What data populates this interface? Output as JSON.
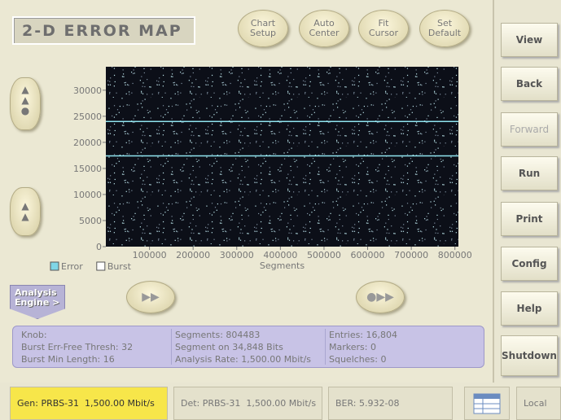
{
  "header": {
    "title": "2-D ERROR MAP"
  },
  "toolbar": [
    "Chart Setup",
    "Auto Center",
    "Fit Cursor",
    "Set Default"
  ],
  "side_buttons": [
    "View",
    "Back",
    "Forward",
    "Run",
    "Print",
    "Config",
    "Help",
    "Shutdown"
  ],
  "chart_data": {
    "type": "scatter",
    "x_label": "Segments",
    "xlim": [
      0,
      808000
    ],
    "ylim": [
      0,
      34500
    ],
    "xticks": [
      100000,
      200000,
      300000,
      400000,
      500000,
      600000,
      700000,
      800000
    ],
    "yticks": [
      0,
      5000,
      10000,
      15000,
      20000,
      25000,
      30000
    ],
    "legend": [
      {
        "name": "Error",
        "color": "#7fd6e6"
      },
      {
        "name": "Burst",
        "color": "#ffffff"
      }
    ],
    "cursors": [
      24000,
      17400
    ],
    "cursor_color": "#8fe3ee"
  },
  "analysis_tab": "Analysis Engine >",
  "info": [
    [
      "Knob:",
      "Burst Err-Free Thresh: 32",
      "Burst Min Length: 16"
    ],
    [
      "Segments: 804483",
      "Segment on 34,848 Bits",
      "Analysis Rate: 1,500.00 Mbit/s"
    ],
    [
      "Entries: 16,804",
      "Markers: 0",
      "Squelches: 0"
    ]
  ],
  "status": {
    "gen": "Gen: PRBS-31  1,500.00 Mbit/s",
    "det": "Det: PRBS-31  1,500.00 Mbit/s",
    "ber": "BER: 5.932-08",
    "mode": "Local"
  }
}
